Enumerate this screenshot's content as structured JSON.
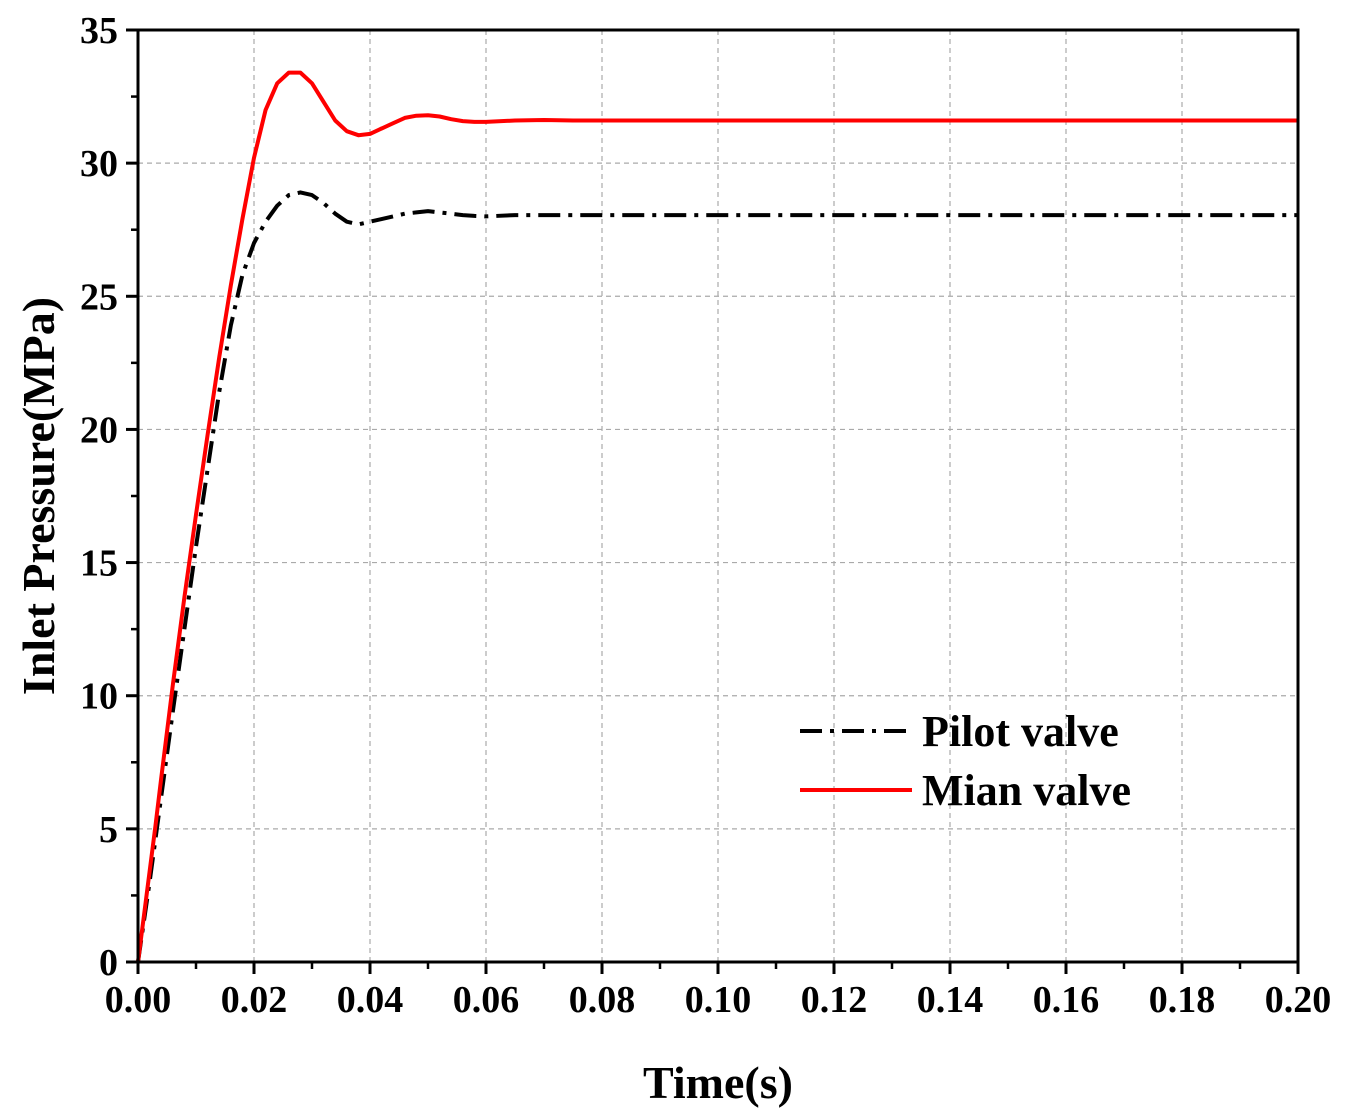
{
  "chart_data": {
    "type": "line",
    "title": "",
    "xlabel": "Time(s)",
    "ylabel": "Inlet Pressure(MPa)",
    "xlim": [
      0,
      0.2
    ],
    "ylim": [
      0,
      35
    ],
    "xticks": [
      0,
      0.02,
      0.04,
      0.06,
      0.08,
      0.1,
      0.12,
      0.14,
      0.16,
      0.18,
      0.2
    ],
    "xtick_labels": [
      "0.00",
      "0.02",
      "0.04",
      "0.06",
      "0.08",
      "0.10",
      "0.12",
      "0.14",
      "0.16",
      "0.18",
      "0.20"
    ],
    "yticks": [
      0,
      5,
      10,
      15,
      20,
      25,
      30,
      35
    ],
    "ytick_labels": [
      "0",
      "5",
      "10",
      "15",
      "20",
      "25",
      "30",
      "35"
    ],
    "grid": true,
    "legend_position": "lower-right",
    "series": [
      {
        "name": "Pilot valve",
        "color": "#000000",
        "style": "dash-dot",
        "x": [
          0,
          0.001,
          0.002,
          0.003,
          0.004,
          0.006,
          0.008,
          0.01,
          0.012,
          0.014,
          0.016,
          0.018,
          0.02,
          0.022,
          0.024,
          0.026,
          0.028,
          0.03,
          0.032,
          0.034,
          0.036,
          0.038,
          0.04,
          0.042,
          0.044,
          0.046,
          0.048,
          0.05,
          0.052,
          0.054,
          0.056,
          0.058,
          0.06,
          0.065,
          0.07,
          0.08,
          0.1,
          0.12,
          0.14,
          0.16,
          0.18,
          0.2
        ],
        "y": [
          0,
          1.5,
          3.0,
          4.6,
          6.2,
          9.4,
          12.5,
          15.6,
          18.5,
          21.4,
          23.9,
          25.8,
          27.0,
          27.8,
          28.4,
          28.8,
          28.9,
          28.8,
          28.5,
          28.1,
          27.8,
          27.7,
          27.8,
          27.9,
          28.0,
          28.1,
          28.15,
          28.2,
          28.15,
          28.1,
          28.05,
          28.02,
          28.0,
          28.05,
          28.05,
          28.05,
          28.05,
          28.05,
          28.05,
          28.05,
          28.05,
          28.05
        ]
      },
      {
        "name": "Mian valve",
        "color": "#ff0000",
        "style": "solid",
        "x": [
          0,
          0.001,
          0.002,
          0.003,
          0.004,
          0.006,
          0.008,
          0.01,
          0.012,
          0.014,
          0.016,
          0.018,
          0.02,
          0.022,
          0.024,
          0.026,
          0.028,
          0.03,
          0.032,
          0.034,
          0.036,
          0.038,
          0.04,
          0.042,
          0.044,
          0.046,
          0.048,
          0.05,
          0.052,
          0.054,
          0.056,
          0.058,
          0.06,
          0.065,
          0.07,
          0.075,
          0.08,
          0.1,
          0.12,
          0.14,
          0.16,
          0.18,
          0.2
        ],
        "y": [
          0,
          1.7,
          3.4,
          5.1,
          6.9,
          10.4,
          13.7,
          16.8,
          19.8,
          22.7,
          25.4,
          27.9,
          30.2,
          32.0,
          33.0,
          33.4,
          33.4,
          33.0,
          32.3,
          31.6,
          31.2,
          31.05,
          31.1,
          31.3,
          31.5,
          31.7,
          31.78,
          31.8,
          31.75,
          31.65,
          31.58,
          31.55,
          31.55,
          31.6,
          31.62,
          31.6,
          31.6,
          31.6,
          31.6,
          31.6,
          31.6,
          31.6,
          31.6
        ]
      }
    ]
  }
}
